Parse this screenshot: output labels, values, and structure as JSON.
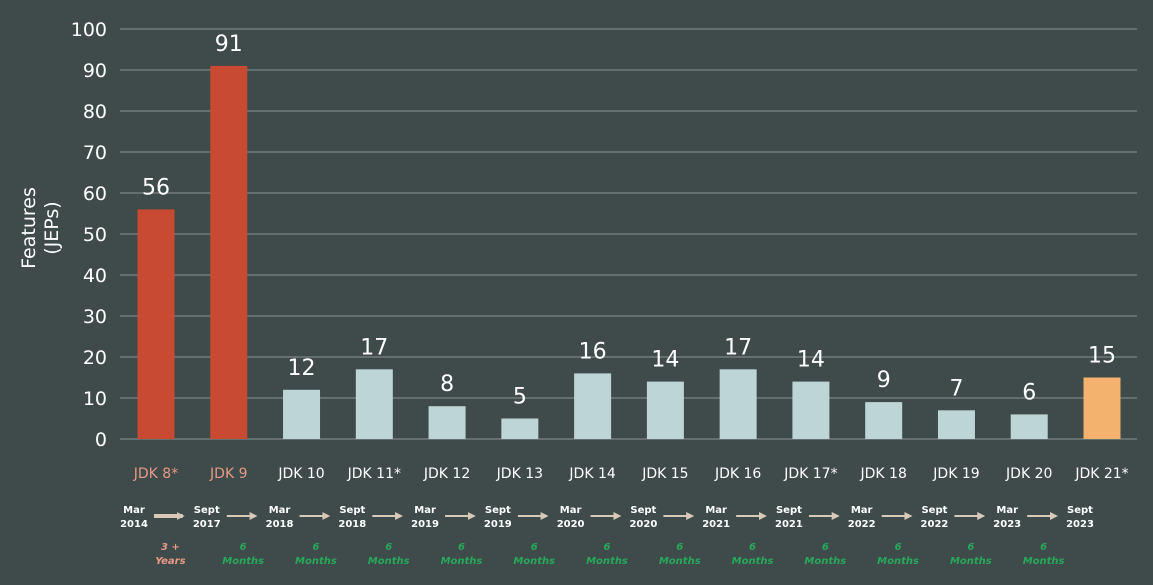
{
  "colors": {
    "background": "#3f4a4a",
    "grid": "#8c9494",
    "bar_red": "#c84a33",
    "bar_light": "#bdd5d4",
    "bar_highlight": "#f3b36f",
    "label_red": "#e79a86",
    "label_white": "#ffffff",
    "label_duration_red": "#e79a86",
    "label_duration_green": "#27a95c",
    "arrow": "#d9c9b9"
  },
  "chart_data": {
    "type": "bar",
    "ylabel": "Features\n(JEPs)",
    "xlabel": "",
    "ylim": [
      0,
      100
    ],
    "yticks": [
      0,
      10,
      20,
      30,
      40,
      50,
      60,
      70,
      80,
      90,
      100
    ],
    "grid": true,
    "categories": [
      "JDK 8*",
      "JDK 9",
      "JDK 10",
      "JDK 11*",
      "JDK 12",
      "JDK 13",
      "JDK 14",
      "JDK 15",
      "JDK 16",
      "JDK 17*",
      "JDK 18",
      "JDK 19",
      "JDK 20",
      "JDK 21*"
    ],
    "values": [
      56,
      91,
      12,
      17,
      8,
      5,
      16,
      14,
      17,
      14,
      9,
      7,
      6,
      15
    ],
    "bar_colors": [
      "red",
      "red",
      "light",
      "light",
      "light",
      "light",
      "light",
      "light",
      "light",
      "light",
      "light",
      "light",
      "light",
      "highlight"
    ],
    "category_label_colors": [
      "red",
      "red",
      "white",
      "white",
      "white",
      "white",
      "white",
      "white",
      "white",
      "white",
      "white",
      "white",
      "white",
      "white"
    ],
    "release_dates": [
      [
        "Mar",
        "2014"
      ],
      [
        "Sept",
        "2017"
      ],
      [
        "Mar",
        "2018"
      ],
      [
        "Sept",
        "2018"
      ],
      [
        "Mar",
        "2019"
      ],
      [
        "Sept",
        "2019"
      ],
      [
        "Mar",
        "2020"
      ],
      [
        "Sept",
        "2020"
      ],
      [
        "Mar",
        "2021"
      ],
      [
        "Sept",
        "2021"
      ],
      [
        "Mar",
        "2022"
      ],
      [
        "Sept",
        "2022"
      ],
      [
        "Mar",
        "2023"
      ],
      [
        "Sept",
        "2023"
      ]
    ],
    "intervals": [
      [
        "3 +",
        "Years"
      ],
      [
        "6",
        "Months"
      ],
      [
        "6",
        "Months"
      ],
      [
        "6",
        "Months"
      ],
      [
        "6",
        "Months"
      ],
      [
        "6",
        "Months"
      ],
      [
        "6",
        "Months"
      ],
      [
        "6",
        "Months"
      ],
      [
        "6",
        "Months"
      ],
      [
        "6",
        "Months"
      ],
      [
        "6",
        "Months"
      ],
      [
        "6",
        "Months"
      ],
      [
        "6",
        "Months"
      ]
    ],
    "interval_colors": [
      "red",
      "green",
      "green",
      "green",
      "green",
      "green",
      "green",
      "green",
      "green",
      "green",
      "green",
      "green",
      "green"
    ]
  }
}
